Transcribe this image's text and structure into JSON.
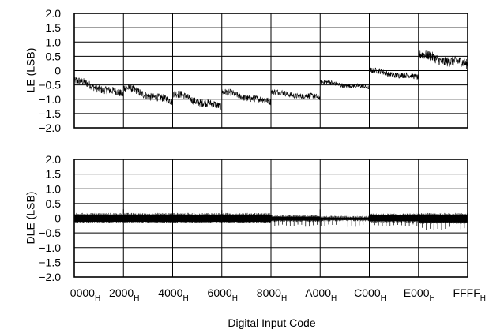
{
  "chart_data": [
    {
      "type": "line",
      "ylabel": "LE (LSB)",
      "xlabel": "Digital Input Code",
      "ylim": [
        -2.0,
        2.0
      ],
      "xlim": [
        0,
        65535
      ],
      "y_ticks": [
        "2.0",
        "1.5",
        "1.0",
        "0.5",
        "0",
        "-0.5",
        "-1.0",
        "-1.5",
        "-2.0"
      ],
      "x_tick_labels": [
        {
          "main": "0000",
          "sub": "H"
        },
        {
          "main": "2000",
          "sub": "H"
        },
        {
          "main": "4000",
          "sub": "H"
        },
        {
          "main": "6000",
          "sub": "H"
        },
        {
          "main": "8000",
          "sub": "H"
        },
        {
          "main": "A000",
          "sub": "H"
        },
        {
          "main": "C000",
          "sub": "H"
        },
        {
          "main": "E000",
          "sub": "H"
        },
        {
          "main": "FFFF",
          "sub": "H"
        }
      ],
      "grid": true,
      "color": "#000000",
      "series_segments": [
        {
          "x_start": 0,
          "x_end": 8192,
          "y_start": -0.35,
          "y_end": -0.85,
          "noise": 0.14
        },
        {
          "x_start": 8192,
          "x_end": 16384,
          "y_start": -0.6,
          "y_end": -1.1,
          "noise": 0.14
        },
        {
          "x_start": 16384,
          "x_end": 24576,
          "y_start": -0.8,
          "y_end": -1.3,
          "noise": 0.14
        },
        {
          "x_start": 24576,
          "x_end": 32768,
          "y_start": -0.75,
          "y_end": -1.1,
          "noise": 0.12
        },
        {
          "x_start": 32768,
          "x_end": 40960,
          "y_start": -0.75,
          "y_end": -0.95,
          "noise": 0.1
        },
        {
          "x_start": 40960,
          "x_end": 49152,
          "y_start": -0.4,
          "y_end": -0.6,
          "noise": 0.08
        },
        {
          "x_start": 49152,
          "x_end": 57344,
          "y_start": 0.0,
          "y_end": -0.25,
          "noise": 0.1
        },
        {
          "x_start": 57344,
          "x_end": 65535,
          "y_start": 0.55,
          "y_end": 0.2,
          "noise": 0.18
        }
      ]
    },
    {
      "type": "line",
      "ylabel": "DLE (LSB)",
      "xlabel": "Digital Input Code",
      "ylim": [
        -2.0,
        2.0
      ],
      "xlim": [
        0,
        65535
      ],
      "y_ticks": [
        "2.0",
        "1.5",
        "1.0",
        "0.5",
        "0",
        "-0.5",
        "-1.0",
        "-1.5",
        "-2.0"
      ],
      "x_tick_labels": [
        {
          "main": "0000",
          "sub": "H"
        },
        {
          "main": "2000",
          "sub": "H"
        },
        {
          "main": "4000",
          "sub": "H"
        },
        {
          "main": "6000",
          "sub": "H"
        },
        {
          "main": "8000",
          "sub": "H"
        },
        {
          "main": "A000",
          "sub": "H"
        },
        {
          "main": "C000",
          "sub": "H"
        },
        {
          "main": "E000",
          "sub": "H"
        },
        {
          "main": "FFFF",
          "sub": "H"
        }
      ],
      "grid": true,
      "color": "#000000",
      "band_segments": [
        {
          "x_start": 0,
          "x_end": 32768,
          "upper": 0.12,
          "lower": -0.12
        },
        {
          "x_start": 32768,
          "x_end": 40960,
          "upper": 0.05,
          "lower": -0.08
        },
        {
          "x_start": 40960,
          "x_end": 49152,
          "upper": 0.02,
          "lower": -0.06
        },
        {
          "x_start": 49152,
          "x_end": 57344,
          "upper": 0.1,
          "lower": -0.1
        },
        {
          "x_start": 57344,
          "x_end": 65535,
          "upper": 0.12,
          "lower": -0.14
        }
      ],
      "spikes": [
        {
          "x": 8192,
          "y": 0.3
        },
        {
          "x": 16384,
          "y": 0.28
        },
        {
          "x": 24576,
          "y": 0.28
        },
        {
          "x": 40960,
          "y": 0.3
        },
        {
          "x": 49152,
          "y": 0.35
        }
      ],
      "periodic_dips": [
        {
          "x_start": 32768,
          "x_end": 57344,
          "period": 640,
          "depth": -0.3
        },
        {
          "x_start": 57344,
          "x_end": 65535,
          "period": 640,
          "depth": -0.42
        }
      ]
    }
  ]
}
